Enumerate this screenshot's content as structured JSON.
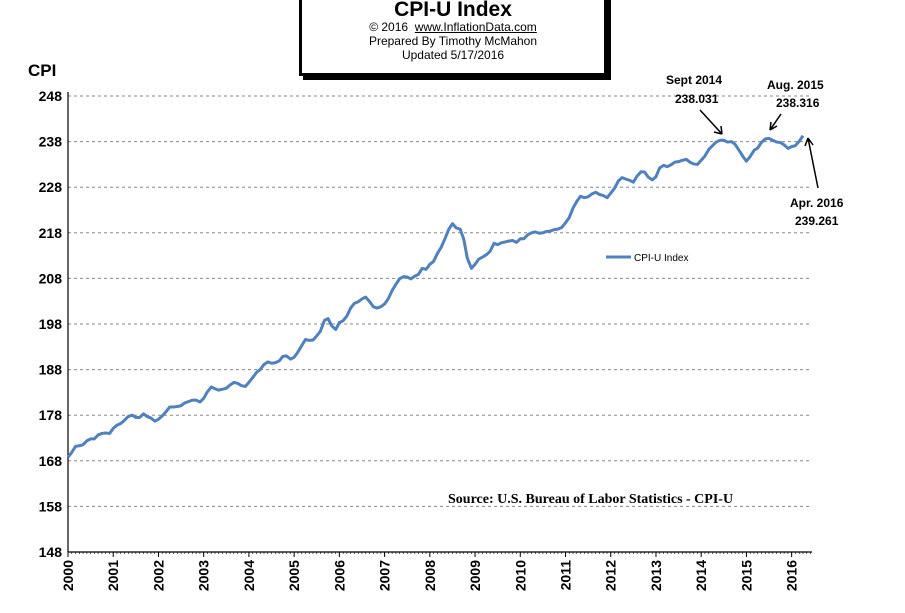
{
  "header": {
    "title": "CPI-U Index",
    "copyright_prefix": "© 2016",
    "copyright_site": "www.InflationData.com",
    "prepared_by": "Prepared  By Timothy McMahon",
    "updated": "Updated   5/17/2016"
  },
  "chart_data": {
    "type": "line",
    "ylabel": "CPI",
    "ylim": [
      148,
      248
    ],
    "yticks": [
      148,
      158,
      168,
      178,
      188,
      198,
      208,
      218,
      228,
      238,
      248
    ],
    "xlim": [
      2000,
      2016.45
    ],
    "xticks": [
      2000,
      2001,
      2002,
      2003,
      2004,
      2005,
      2006,
      2007,
      2008,
      2009,
      2010,
      2011,
      2012,
      2013,
      2014,
      2015,
      2016
    ],
    "grid": "horizontal dashed",
    "legend_position": "center-right",
    "series": [
      {
        "name": "CPI-U Index",
        "color": "#4F81BD",
        "x": [
          2000.0,
          2000.08,
          2000.17,
          2000.25,
          2000.33,
          2000.42,
          2000.5,
          2000.58,
          2000.67,
          2000.75,
          2000.83,
          2000.92,
          2001.0,
          2001.08,
          2001.17,
          2001.25,
          2001.33,
          2001.42,
          2001.5,
          2001.58,
          2001.67,
          2001.75,
          2001.83,
          2001.92,
          2002.0,
          2002.08,
          2002.17,
          2002.25,
          2002.33,
          2002.42,
          2002.5,
          2002.58,
          2002.67,
          2002.75,
          2002.83,
          2002.92,
          2003.0,
          2003.08,
          2003.17,
          2003.25,
          2003.33,
          2003.42,
          2003.5,
          2003.58,
          2003.67,
          2003.75,
          2003.83,
          2003.92,
          2004.0,
          2004.08,
          2004.17,
          2004.25,
          2004.33,
          2004.42,
          2004.5,
          2004.58,
          2004.67,
          2004.75,
          2004.83,
          2004.92,
          2005.0,
          2005.08,
          2005.17,
          2005.25,
          2005.33,
          2005.42,
          2005.5,
          2005.58,
          2005.67,
          2005.75,
          2005.83,
          2005.92,
          2006.0,
          2006.08,
          2006.17,
          2006.25,
          2006.33,
          2006.42,
          2006.5,
          2006.58,
          2006.67,
          2006.75,
          2006.83,
          2006.92,
          2007.0,
          2007.08,
          2007.17,
          2007.25,
          2007.33,
          2007.42,
          2007.5,
          2007.58,
          2007.67,
          2007.75,
          2007.83,
          2007.92,
          2008.0,
          2008.08,
          2008.17,
          2008.25,
          2008.33,
          2008.42,
          2008.5,
          2008.58,
          2008.67,
          2008.75,
          2008.83,
          2008.92,
          2009.0,
          2009.08,
          2009.17,
          2009.25,
          2009.33,
          2009.42,
          2009.5,
          2009.58,
          2009.67,
          2009.75,
          2009.83,
          2009.92,
          2010.0,
          2010.08,
          2010.17,
          2010.25,
          2010.33,
          2010.42,
          2010.5,
          2010.58,
          2010.67,
          2010.75,
          2010.83,
          2010.92,
          2011.0,
          2011.08,
          2011.17,
          2011.25,
          2011.33,
          2011.42,
          2011.5,
          2011.58,
          2011.67,
          2011.75,
          2011.83,
          2011.92,
          2012.0,
          2012.08,
          2012.17,
          2012.25,
          2012.33,
          2012.42,
          2012.5,
          2012.58,
          2012.67,
          2012.75,
          2012.83,
          2012.92,
          2013.0,
          2013.08,
          2013.17,
          2013.25,
          2013.33,
          2013.42,
          2013.5,
          2013.58,
          2013.67,
          2013.75,
          2013.83,
          2013.92,
          2014.0,
          2014.08,
          2014.17,
          2014.25,
          2014.33,
          2014.42,
          2014.5,
          2014.58,
          2014.67,
          2014.75,
          2014.83,
          2014.92,
          2015.0,
          2015.08,
          2015.17,
          2015.25,
          2015.33,
          2015.42,
          2015.5,
          2015.58,
          2015.67,
          2015.75,
          2015.83,
          2015.92,
          2016.0,
          2016.08,
          2016.17,
          2016.25
        ],
        "values": [
          168.8,
          169.8,
          171.2,
          171.3,
          171.5,
          172.4,
          172.8,
          172.8,
          173.7,
          174.0,
          174.1,
          174.0,
          175.1,
          175.8,
          176.2,
          176.9,
          177.7,
          178.0,
          177.5,
          177.5,
          178.3,
          177.7,
          177.4,
          176.7,
          177.1,
          177.8,
          178.8,
          179.8,
          179.8,
          179.9,
          180.1,
          180.7,
          181.0,
          181.3,
          181.3,
          180.9,
          181.7,
          183.1,
          184.2,
          183.8,
          183.5,
          183.7,
          183.9,
          184.6,
          185.2,
          185.0,
          184.5,
          184.3,
          185.2,
          186.2,
          187.4,
          188.0,
          189.1,
          189.7,
          189.4,
          189.5,
          189.9,
          190.9,
          191.0,
          190.3,
          190.7,
          191.8,
          193.3,
          194.6,
          194.4,
          194.5,
          195.4,
          196.4,
          198.8,
          199.2,
          197.6,
          196.8,
          198.3,
          198.7,
          199.8,
          201.5,
          202.5,
          202.9,
          203.5,
          203.9,
          202.9,
          201.8,
          201.5,
          201.8,
          202.4,
          203.5,
          205.4,
          206.7,
          207.9,
          208.4,
          208.3,
          207.9,
          208.5,
          208.9,
          210.2,
          210.0,
          211.1,
          211.7,
          213.5,
          214.8,
          216.6,
          218.8,
          220.0,
          219.1,
          218.8,
          216.6,
          212.4,
          210.2,
          211.1,
          212.2,
          212.7,
          213.2,
          213.9,
          215.7,
          215.4,
          215.8,
          216.0,
          216.2,
          216.3,
          215.9,
          216.7,
          216.7,
          217.6,
          218.0,
          218.2,
          217.9,
          218.0,
          218.3,
          218.4,
          218.7,
          218.8,
          219.2,
          220.2,
          221.3,
          223.5,
          224.9,
          226.0,
          225.7,
          225.9,
          226.5,
          226.9,
          226.4,
          226.2,
          225.7,
          226.7,
          227.7,
          229.4,
          230.1,
          229.8,
          229.5,
          229.1,
          230.4,
          231.4,
          231.3,
          230.2,
          229.6,
          230.3,
          232.2,
          232.8,
          232.5,
          232.9,
          233.5,
          233.6,
          233.9,
          234.1,
          233.5,
          233.1,
          233.0,
          233.9,
          234.8,
          236.3,
          237.1,
          237.9,
          238.3,
          238.3,
          237.9,
          238.0,
          237.4,
          236.2,
          234.8,
          233.7,
          234.7,
          236.1,
          236.6,
          237.8,
          238.6,
          238.7,
          238.3,
          237.9,
          237.8,
          237.3,
          236.5,
          236.9,
          237.1,
          238.1,
          239.3
        ]
      }
    ],
    "annotations": [
      {
        "label": "Sept 2014",
        "value_text": "238.031",
        "x": 2014.67,
        "y": 238.031
      },
      {
        "label": "Aug. 2015",
        "value_text": "238.316",
        "x": 2015.58,
        "y": 238.316
      },
      {
        "label": "Apr. 2016",
        "value_text": "239.261",
        "x": 2016.25,
        "y": 239.261
      }
    ],
    "source_note": "Source: U.S. Bureau of Labor Statistics - CPI-U"
  }
}
